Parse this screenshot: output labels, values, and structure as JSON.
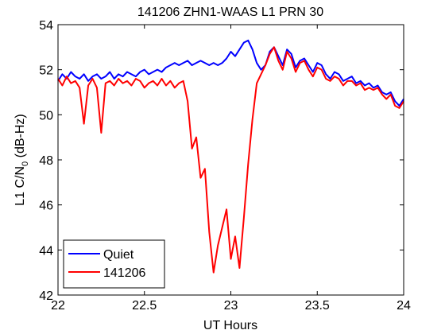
{
  "chart_data": {
    "type": "line",
    "title": "141206 ZHN1-WAAS L1 PRN 30",
    "xlabel": "UT Hours",
    "ylabel": {
      "main": "L1 C/N",
      "sub": "0",
      "rest": " (dB-Hz)"
    },
    "x": [
      22,
      22.025,
      22.05,
      22.075,
      22.1,
      22.125,
      22.15,
      22.175,
      22.2,
      22.225,
      22.25,
      22.275,
      22.3,
      22.325,
      22.35,
      22.375,
      22.4,
      22.425,
      22.45,
      22.475,
      22.5,
      22.525,
      22.55,
      22.575,
      22.6,
      22.625,
      22.65,
      22.675,
      22.7,
      22.725,
      22.75,
      22.775,
      22.8,
      22.825,
      22.85,
      22.875,
      22.9,
      22.925,
      22.95,
      22.975,
      23,
      23.025,
      23.05,
      23.075,
      23.1,
      23.125,
      23.15,
      23.175,
      23.2,
      23.225,
      23.25,
      23.275,
      23.3,
      23.325,
      23.35,
      23.375,
      23.4,
      23.425,
      23.45,
      23.475,
      23.5,
      23.525,
      23.55,
      23.575,
      23.6,
      23.625,
      23.65,
      23.675,
      23.7,
      23.725,
      23.75,
      23.775,
      23.8,
      23.825,
      23.85,
      23.875,
      23.9,
      23.925,
      23.95,
      23.975,
      24
    ],
    "series": [
      {
        "name": "Quiet",
        "color": "#0000ff",
        "values": [
          51.5,
          51.8,
          51.6,
          51.9,
          51.7,
          51.6,
          51.8,
          51.5,
          51.7,
          51.8,
          51.6,
          51.7,
          51.9,
          51.6,
          51.8,
          51.7,
          51.9,
          51.8,
          51.7,
          51.9,
          52.0,
          51.8,
          51.9,
          52.0,
          51.9,
          52.1,
          52.2,
          52.3,
          52.2,
          52.3,
          52.4,
          52.2,
          52.3,
          52.4,
          52.3,
          52.2,
          52.3,
          52.2,
          52.3,
          52.5,
          52.8,
          52.6,
          52.9,
          53.2,
          53.3,
          52.9,
          52.3,
          52.0,
          52.2,
          52.8,
          53.0,
          52.6,
          52.2,
          52.9,
          52.7,
          52.1,
          52.4,
          52.5,
          52.2,
          51.9,
          52.3,
          52.2,
          51.8,
          51.6,
          51.9,
          51.8,
          51.5,
          51.6,
          51.7,
          51.4,
          51.5,
          51.3,
          51.4,
          51.2,
          51.3,
          51.0,
          50.9,
          51.0,
          50.6,
          50.4,
          50.7
        ]
      },
      {
        "name": "141206",
        "color": "#ff0000",
        "values": [
          51.6,
          51.3,
          51.7,
          51.4,
          51.5,
          51.2,
          49.6,
          51.3,
          51.6,
          51.2,
          49.2,
          51.4,
          51.5,
          51.3,
          51.6,
          51.4,
          51.5,
          51.3,
          51.6,
          51.5,
          51.2,
          51.4,
          51.5,
          51.3,
          51.6,
          51.3,
          51.5,
          51.2,
          51.4,
          51.5,
          50.6,
          48.5,
          49.0,
          47.2,
          47.6,
          44.8,
          43.0,
          44.2,
          45.0,
          45.8,
          43.6,
          44.6,
          43.2,
          45.4,
          47.8,
          49.8,
          51.4,
          51.8,
          52.2,
          52.7,
          53.0,
          52.4,
          52.0,
          52.8,
          52.5,
          51.9,
          52.3,
          52.4,
          52.0,
          51.7,
          52.1,
          52.0,
          51.6,
          51.5,
          51.7,
          51.6,
          51.3,
          51.5,
          51.5,
          51.3,
          51.4,
          51.1,
          51.2,
          51.1,
          51.2,
          50.9,
          50.7,
          50.9,
          50.4,
          50.3,
          50.6
        ]
      }
    ],
    "xlim": [
      22,
      24
    ],
    "xticks": [
      22,
      22.5,
      23,
      23.5,
      24
    ],
    "ylim": [
      42,
      54
    ],
    "yticks": [
      42,
      44,
      46,
      48,
      50,
      52,
      54
    ],
    "grid": false,
    "legend": "lower left"
  }
}
